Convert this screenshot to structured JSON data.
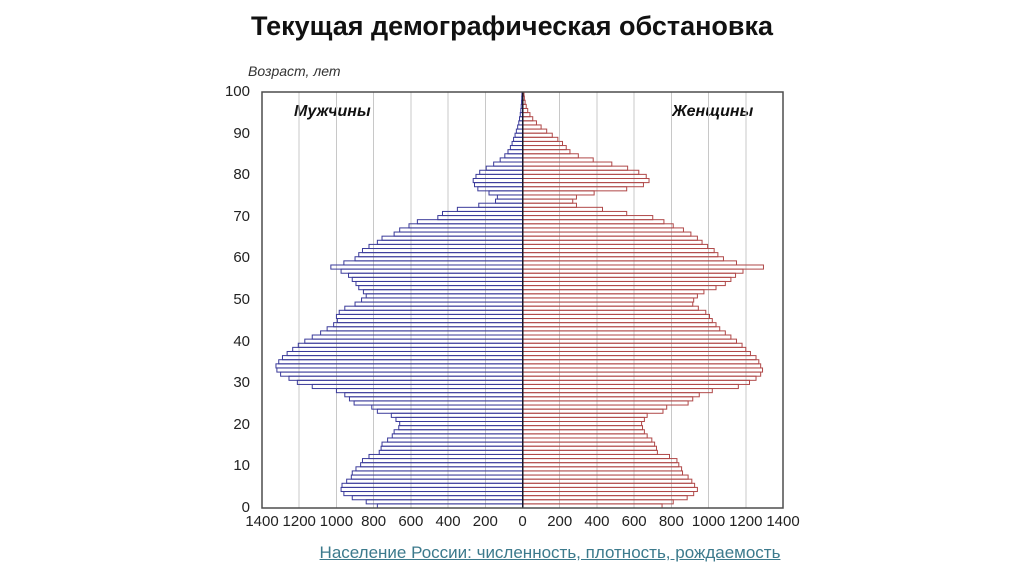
{
  "title": "Текущая демографическая обстановка",
  "link": {
    "text": "Население России: численность, плотность, рождаемость"
  },
  "colors": {
    "male_outline": "#3a3a9a",
    "female_outline": "#b04848",
    "grid": "#c8c8c8",
    "frame": "#4d4d4d",
    "center_axis": "#15152a",
    "link": "#3c7a8c",
    "text": "#222222"
  },
  "chart_data": {
    "type": "bar",
    "subtype": "population-pyramid",
    "title": "Текущая демографическая обстановка",
    "ylabel": "Возраст, лет",
    "xlabel": "",
    "xlim": [
      -1400,
      1400
    ],
    "ylim": [
      0,
      100
    ],
    "grid": "vertical-only",
    "x_tick_step": 200,
    "axis": {
      "x_ticks": [
        "1400",
        "1200",
        "1000",
        "800",
        "600",
        "400",
        "200",
        "0",
        "200",
        "400",
        "600",
        "800",
        "1000",
        "1200",
        "1400"
      ],
      "y_ticks": [
        "0",
        "10",
        "20",
        "30",
        "40",
        "50",
        "60",
        "70",
        "80",
        "90",
        "100"
      ]
    },
    "series_labels": {
      "male": "Мужчины",
      "female": "Женщины"
    },
    "ages_note": "single-year age bins 0..100, values in thousands, estimated from bar lengths",
    "series": [
      {
        "name": "Мужчины",
        "side": "left",
        "values_by_age_0_to_100": [
          780,
          840,
          915,
          960,
          975,
          970,
          945,
          920,
          915,
          895,
          870,
          860,
          825,
          770,
          760,
          755,
          725,
          700,
          690,
          665,
          660,
          680,
          705,
          780,
          810,
          905,
          930,
          955,
          1000,
          1130,
          1210,
          1255,
          1300,
          1320,
          1325,
          1310,
          1290,
          1265,
          1235,
          1205,
          1170,
          1130,
          1085,
          1050,
          1015,
          995,
          1000,
          985,
          955,
          900,
          865,
          840,
          855,
          880,
          895,
          915,
          935,
          975,
          1030,
          960,
          900,
          880,
          860,
          825,
          780,
          755,
          690,
          660,
          610,
          565,
          455,
          430,
          350,
          235,
          145,
          135,
          180,
          240,
          258,
          265,
          250,
          230,
          195,
          155,
          120,
          95,
          78,
          65,
          56,
          48,
          40,
          33,
          26,
          20,
          16,
          12,
          9,
          7,
          5,
          4,
          3
        ]
      },
      {
        "name": "Женщины",
        "side": "right",
        "values_by_age_0_to_100": [
          750,
          810,
          885,
          920,
          940,
          925,
          910,
          890,
          860,
          855,
          840,
          830,
          790,
          725,
          720,
          710,
          695,
          670,
          655,
          645,
          640,
          655,
          670,
          755,
          775,
          890,
          915,
          950,
          1020,
          1160,
          1220,
          1255,
          1280,
          1290,
          1280,
          1270,
          1255,
          1225,
          1200,
          1180,
          1150,
          1120,
          1090,
          1060,
          1040,
          1020,
          1005,
          985,
          945,
          915,
          920,
          940,
          975,
          1040,
          1090,
          1120,
          1145,
          1185,
          1295,
          1150,
          1080,
          1050,
          1030,
          995,
          965,
          940,
          905,
          865,
          810,
          760,
          700,
          560,
          430,
          290,
          270,
          290,
          385,
          560,
          650,
          680,
          665,
          625,
          565,
          480,
          380,
          300,
          255,
          235,
          215,
          190,
          160,
          130,
          100,
          75,
          55,
          40,
          28,
          20,
          14,
          10,
          8
        ]
      }
    ]
  }
}
